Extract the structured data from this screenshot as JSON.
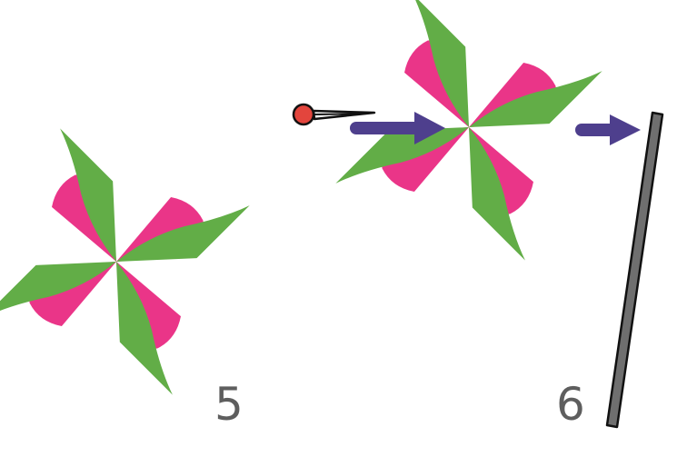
{
  "steps": [
    {
      "number": "5"
    },
    {
      "number": "6"
    }
  ],
  "colors": {
    "blade_green": "#62ad47",
    "blade_pink": "#ea3588",
    "arrow": "#4e3f8d",
    "pin_head": "#e3453d",
    "stick": "#6f6f6f",
    "outline": "#111111",
    "label": "#5e5e5e"
  },
  "icons": {
    "pinwheel": "pinwheel-icon",
    "pin": "pin-icon",
    "arrow": "right-arrow-icon",
    "stick": "stick-icon"
  }
}
